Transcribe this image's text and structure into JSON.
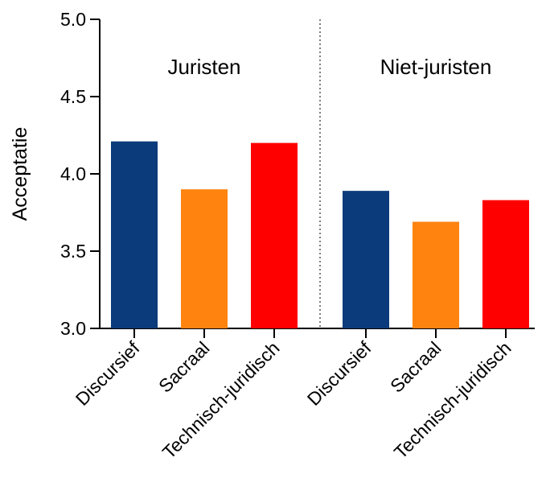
{
  "chart_data": {
    "type": "bar",
    "title": "",
    "ylabel": "Acceptatie",
    "xlabel": "",
    "ylim": [
      3.0,
      5.0
    ],
    "yticks": [
      "3.0",
      "3.5",
      "4.0",
      "4.5",
      "5.0"
    ],
    "groups": [
      {
        "label": "Juristen",
        "bars": [
          {
            "category": "Discursief",
            "value": 4.21,
            "color": "#0b3b7a"
          },
          {
            "category": "Sacraal",
            "value": 3.9,
            "color": "#ff830f"
          },
          {
            "category": "Technisch-juridisch",
            "value": 4.2,
            "color": "#ff0000"
          }
        ]
      },
      {
        "label": "Niet-juristen",
        "bars": [
          {
            "category": "Discursief",
            "value": 3.89,
            "color": "#0b3b7a"
          },
          {
            "category": "Sacraal",
            "value": 3.69,
            "color": "#ff830f"
          },
          {
            "category": "Technisch-juridisch",
            "value": 3.83,
            "color": "#ff0000"
          }
        ]
      }
    ],
    "grid": false,
    "group_separator": "dotted"
  }
}
